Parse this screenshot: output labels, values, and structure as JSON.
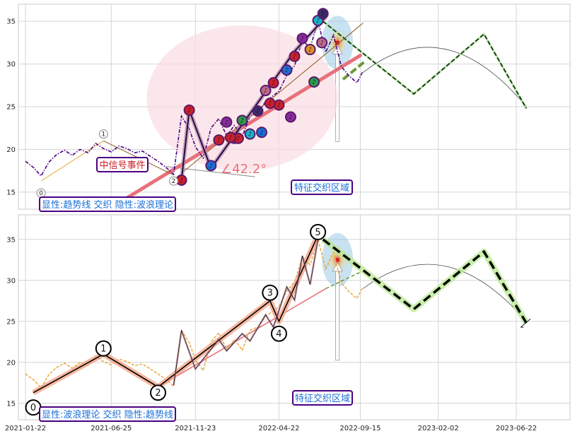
{
  "chart_data": {
    "type": "line",
    "x_ticks": [
      "2021-01-22",
      "2021-06-25",
      "2021-11-23",
      "2022-04-22",
      "2022-09-15",
      "2023-02-02",
      "2023-06-22"
    ],
    "panels": [
      {
        "ylim": [
          13,
          37
        ],
        "y_ticks": [
          15,
          20,
          25,
          30,
          35
        ],
        "annotations": {
          "event_label": "中信号事件",
          "angle_label": "∠42.2°",
          "zone_label": "特征交织区域",
          "mode_label": "显性:趋势线 交织 隐性:波浪理论",
          "wave_markers": [
            "0",
            "1",
            "2"
          ]
        },
        "series": [
          {
            "role": "price",
            "color": "#4b0082",
            "points": [
              [
                "2021-01-22",
                18.6
              ],
              [
                "2021-02-05",
                17.9
              ],
              [
                "2021-02-19",
                16.9
              ],
              [
                "2021-03-05",
                18.5
              ],
              [
                "2021-03-19",
                19.4
              ],
              [
                "2021-04-02",
                19.9
              ],
              [
                "2021-04-16",
                19.3
              ],
              [
                "2021-04-30",
                20.0
              ],
              [
                "2021-05-14",
                19.6
              ],
              [
                "2021-05-28",
                20.7
              ],
              [
                "2021-06-11",
                20.1
              ],
              [
                "2021-06-25",
                19.7
              ],
              [
                "2021-07-09",
                20.4
              ],
              [
                "2021-07-23",
                20.1
              ],
              [
                "2021-08-06",
                19.6
              ],
              [
                "2021-08-20",
                19.8
              ],
              [
                "2021-09-03",
                19.2
              ],
              [
                "2021-09-17",
                18.6
              ],
              [
                "2021-10-01",
                17.9
              ],
              [
                "2021-10-15",
                17.1
              ],
              [
                "2021-10-29",
                23.9
              ],
              [
                "2021-11-12",
                22.4
              ],
              [
                "2021-11-23",
                20.3
              ],
              [
                "2021-12-07",
                19.0
              ],
              [
                "2021-12-21",
                22.5
              ],
              [
                "2022-01-04",
                23.6
              ],
              [
                "2022-01-18",
                21.6
              ],
              [
                "2022-02-01",
                22.8
              ],
              [
                "2022-02-15",
                21.5
              ],
              [
                "2022-03-01",
                23.9
              ],
              [
                "2022-03-15",
                24.3
              ],
              [
                "2022-03-29",
                25.6
              ],
              [
                "2022-04-12",
                26.3
              ],
              [
                "2022-04-22",
                26.8
              ],
              [
                "2022-05-06",
                28.7
              ],
              [
                "2022-05-20",
                29.8
              ],
              [
                "2022-06-03",
                32.8
              ],
              [
                "2022-06-17",
                31.9
              ],
              [
                "2022-07-01",
                35.0
              ],
              [
                "2022-07-15",
                31.4
              ],
              [
                "2022-07-29",
                33.4
              ],
              [
                "2022-08-12",
                29.7
              ],
              [
                "2022-08-26",
                28.6
              ],
              [
                "2022-09-09",
                27.8
              ],
              [
                "2022-09-20",
                29.2
              ]
            ]
          },
          {
            "role": "projection",
            "style": "dashed",
            "color": "#1a4d1a",
            "points": [
              [
                "2022-07-10",
                35.0
              ],
              [
                "2022-12-20",
                26.5
              ],
              [
                "2023-04-25",
                33.5
              ],
              [
                "2023-07-10",
                24.8
              ]
            ]
          },
          {
            "role": "trend_line",
            "color": "#e8707a",
            "points": [
              [
                "2021-06-25",
                13.2
              ],
              [
                "2022-09-15",
                31.0
              ]
            ]
          },
          {
            "role": "wave_line",
            "color": "#3a0a55",
            "points": [
              [
                "2021-10-29",
                16.4
              ],
              [
                "2021-11-12",
                24.6
              ],
              [
                "2021-12-21",
                17.8
              ],
              [
                "2022-05-20",
                31.5
              ],
              [
                "2022-07-15",
                35.5
              ]
            ]
          }
        ]
      },
      {
        "ylim": [
          13,
          38
        ],
        "y_ticks": [
          15,
          20,
          25,
          30,
          35
        ],
        "annotations": {
          "zone_label": "特征交织区域",
          "mode_label": "显性:波浪理论 交织 隐性:趋势线",
          "wave_markers": [
            "0",
            "1",
            "2",
            "3",
            "4",
            "5"
          ]
        },
        "series": [
          {
            "role": "price",
            "color": "#e8a838",
            "points": [
              [
                "2021-01-22",
                18.6
              ],
              [
                "2021-02-05",
                17.9
              ],
              [
                "2021-02-19",
                16.9
              ],
              [
                "2021-03-05",
                18.5
              ],
              [
                "2021-03-19",
                19.4
              ],
              [
                "2021-04-02",
                19.9
              ],
              [
                "2021-04-16",
                19.3
              ],
              [
                "2021-04-30",
                20.0
              ],
              [
                "2021-05-14",
                19.6
              ],
              [
                "2021-05-28",
                20.7
              ],
              [
                "2021-06-11",
                20.1
              ],
              [
                "2021-06-25",
                19.7
              ],
              [
                "2021-07-09",
                20.4
              ],
              [
                "2021-07-23",
                20.1
              ],
              [
                "2021-08-06",
                19.6
              ],
              [
                "2021-08-20",
                19.8
              ],
              [
                "2021-09-03",
                19.2
              ],
              [
                "2021-09-17",
                18.6
              ],
              [
                "2021-10-01",
                17.9
              ],
              [
                "2021-10-15",
                17.1
              ],
              [
                "2021-10-29",
                23.9
              ],
              [
                "2021-11-12",
                22.4
              ],
              [
                "2021-11-23",
                20.3
              ],
              [
                "2021-12-07",
                19.0
              ],
              [
                "2021-12-21",
                22.5
              ],
              [
                "2022-01-04",
                23.6
              ],
              [
                "2022-01-18",
                21.6
              ],
              [
                "2022-02-01",
                22.8
              ],
              [
                "2022-02-15",
                21.5
              ],
              [
                "2022-03-01",
                23.9
              ],
              [
                "2022-03-15",
                24.3
              ],
              [
                "2022-03-29",
                25.6
              ],
              [
                "2022-04-12",
                26.3
              ],
              [
                "2022-04-22",
                26.8
              ],
              [
                "2022-05-06",
                28.7
              ],
              [
                "2022-05-20",
                29.8
              ],
              [
                "2022-06-03",
                32.8
              ],
              [
                "2022-06-17",
                31.9
              ],
              [
                "2022-07-01",
                35.0
              ],
              [
                "2022-07-15",
                31.4
              ],
              [
                "2022-07-29",
                33.4
              ],
              [
                "2022-08-12",
                29.7
              ],
              [
                "2022-08-26",
                28.6
              ],
              [
                "2022-09-09",
                27.8
              ],
              [
                "2022-09-20",
                29.2
              ]
            ]
          },
          {
            "role": "wave",
            "color": "#000000",
            "points": [
              [
                "2021-02-05",
                16.3
              ],
              [
                "2021-06-11",
                21.0
              ],
              [
                "2021-09-17",
                17.0
              ],
              [
                "2022-04-06",
                27.5
              ],
              [
                "2022-04-22",
                25.0
              ],
              [
                "2022-07-01",
                35.5
              ]
            ]
          },
          {
            "role": "projection",
            "style": "dashed",
            "color": "#000000",
            "points": [
              [
                "2022-07-10",
                35.0
              ],
              [
                "2022-12-20",
                26.5
              ],
              [
                "2023-04-25",
                33.5
              ],
              [
                "2023-07-10",
                24.8
              ]
            ]
          },
          {
            "role": "trend_line",
            "color": "#e8707a",
            "points": [
              [
                "2021-09-17",
                17.0
              ],
              [
                "2022-07-15",
                29.0
              ]
            ]
          }
        ]
      }
    ]
  }
}
